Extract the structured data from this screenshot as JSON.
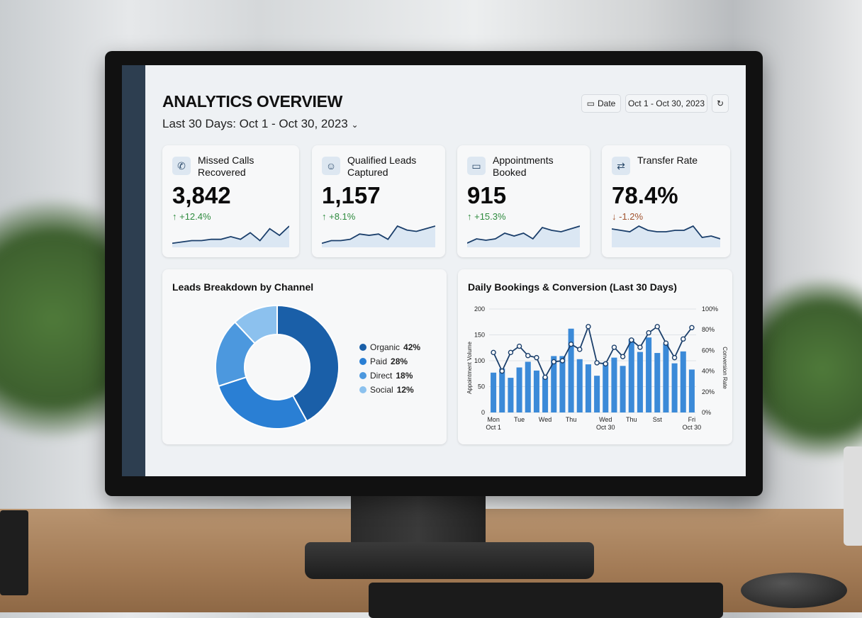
{
  "header": {
    "title": "ANALYTICS OVERVIEW",
    "subtitle": "Last 30 Days: Oct 1 - Oct 30, 2023",
    "date_button": "Date",
    "range_button": "Oct 1 - Oct 30, 2023",
    "icons": {
      "calendar": "calendar-icon",
      "refresh": "refresh-icon",
      "chevron": "chevron-down-icon"
    }
  },
  "cards": [
    {
      "label": "Missed Calls Recovered",
      "value": "3,842",
      "delta": "↑ +12.4%",
      "trend": "up",
      "icon": "phone-icon",
      "spark": [
        2,
        3,
        4,
        4,
        5,
        5,
        7,
        5,
        10,
        4,
        13,
        8,
        15
      ]
    },
    {
      "label": "Qualified Leads Captured",
      "value": "1,157",
      "delta": "↑ +8.1%",
      "trend": "up",
      "icon": "user-icon",
      "spark": [
        2,
        4,
        4,
        5,
        9,
        8,
        9,
        5,
        15,
        12,
        11,
        13,
        15
      ]
    },
    {
      "label": "Appointments Booked",
      "value": "915",
      "delta": "↑ +15.3%",
      "trend": "up",
      "icon": "calendar-icon",
      "spark": [
        2,
        5,
        4,
        5,
        9,
        7,
        9,
        5,
        13,
        11,
        10,
        12,
        14
      ]
    },
    {
      "label": "Transfer Rate",
      "value": "78.4%",
      "delta": "↓ -1.2%",
      "trend": "down",
      "icon": "transfer-icon",
      "spark": [
        12,
        11,
        10,
        14,
        11,
        10,
        10,
        11,
        11,
        14,
        6,
        7,
        5
      ]
    }
  ],
  "colors": {
    "up": "#2e8b3e",
    "down": "#a0522d",
    "line": "#1b3f6b",
    "bar": "#3b8ad8",
    "accent": "#1a5fa8"
  },
  "leads": {
    "title": "Leads Breakdown by Channel",
    "chart_data": {
      "type": "pie",
      "donut": true,
      "slices": [
        {
          "name": "Organic",
          "value": 42,
          "label": "42%",
          "color": "#1a5fa8"
        },
        {
          "name": "Paid",
          "value": 28,
          "label": "28%",
          "color": "#2a7fd4"
        },
        {
          "name": "Direct",
          "value": 18,
          "label": "18%",
          "color": "#4c98de"
        },
        {
          "name": "Social",
          "value": 12,
          "label": "12%",
          "color": "#8cc1ee"
        }
      ]
    }
  },
  "bookings": {
    "title": "Daily Bookings & Conversion (Last 30 Days)",
    "chart_data": {
      "type": "bar",
      "ylabel": "Appointment Volume",
      "y2label": "Conversion Rate",
      "ylim": [
        0,
        200
      ],
      "y2lim": [
        0,
        100
      ],
      "yticks": [
        "0",
        "50",
        "100",
        "150",
        "200"
      ],
      "y2ticks": [
        "0%",
        "20%",
        "40%",
        "60%",
        "80%",
        "100%"
      ],
      "xticks": [
        {
          "i": 0,
          "l1": "Mon",
          "l2": "Oct 1"
        },
        {
          "i": 3,
          "l1": "Tue",
          "l2": ""
        },
        {
          "i": 6,
          "l1": "Wed",
          "l2": ""
        },
        {
          "i": 9,
          "l1": "Thu",
          "l2": ""
        },
        {
          "i": 13,
          "l1": "Wed",
          "l2": "Oct 30"
        },
        {
          "i": 16,
          "l1": "Thu",
          "l2": ""
        },
        {
          "i": 19,
          "l1": "Sst",
          "l2": ""
        },
        {
          "i": 23,
          "l1": "Fri",
          "l2": "Oct 30"
        }
      ],
      "bars": [
        77,
        85,
        67,
        87,
        98,
        81,
        69,
        109,
        109,
        162,
        103,
        93,
        71,
        97,
        106,
        90,
        142,
        117,
        145,
        115,
        133,
        95,
        118,
        83
      ],
      "line": [
        58,
        40,
        58,
        64,
        55,
        53,
        34,
        49,
        50,
        66,
        61,
        83,
        48,
        47,
        63,
        54,
        70,
        63,
        77,
        83,
        67,
        53,
        71,
        82
      ],
      "grid": true
    }
  }
}
